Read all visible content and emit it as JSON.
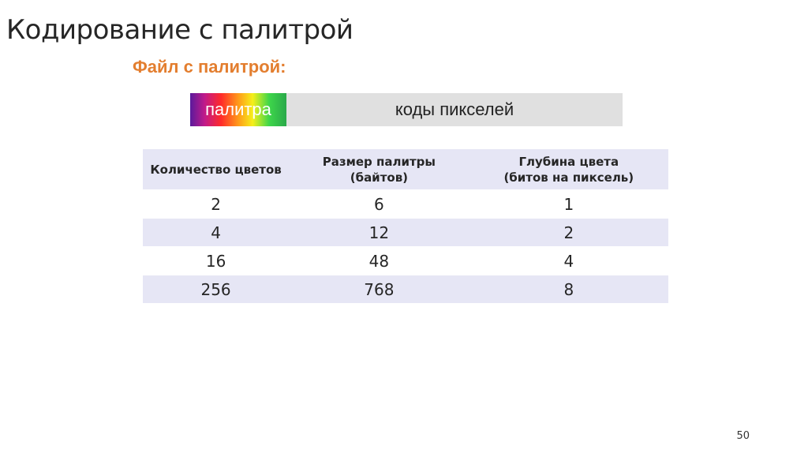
{
  "slide": {
    "title": "Кодирование с палитрой",
    "subtitle": "Файл с палитрой:",
    "page_number": "50"
  },
  "file_bar": {
    "palette_label": "палитра",
    "pixels_label": "коды пикселей"
  },
  "table": {
    "headers": [
      [
        "Количество цветов"
      ],
      [
        "Размер палитры",
        "(байтов)"
      ],
      [
        "Глубина цвета",
        "(битов на пиксель)"
      ]
    ],
    "rows": [
      [
        "2",
        "6",
        "1"
      ],
      [
        "4",
        "12",
        "2"
      ],
      [
        "16",
        "48",
        "4"
      ],
      [
        "256",
        "768",
        "8"
      ]
    ]
  },
  "colors": {
    "subtitle": "#e37e2f",
    "header_bg": "#e6e6f5",
    "bar_gray": "#e0e0e0"
  }
}
